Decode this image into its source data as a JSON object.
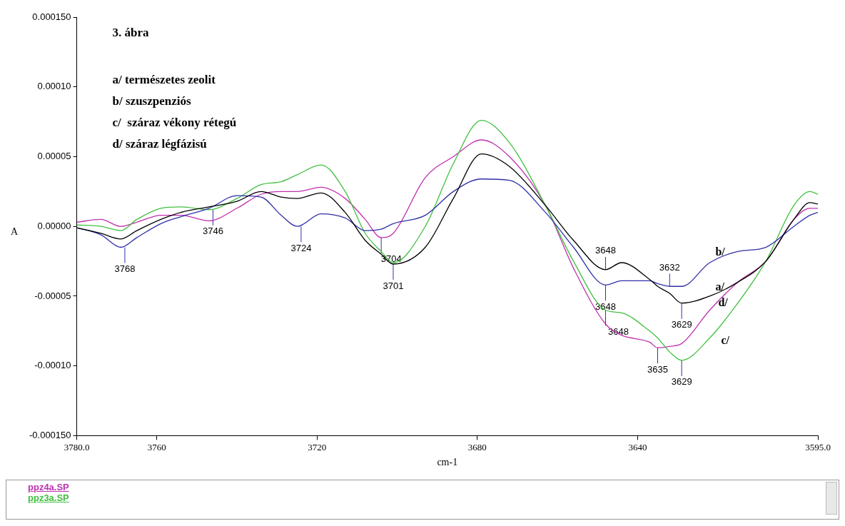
{
  "chart_data": {
    "type": "line",
    "title": "3. ábra",
    "xlabel": "cm-1",
    "ylabel": "A",
    "xlim": [
      3780,
      3595
    ],
    "xticks": [
      {
        "value": 3780,
        "label": "3780.0"
      },
      3760,
      3720,
      3680,
      3640,
      {
        "value": 3595,
        "label": "3595.0"
      }
    ],
    "ylim": [
      -0.00015,
      0.00015
    ],
    "yticks": [
      {
        "value": -0.00015,
        "label": "-0.000150"
      },
      {
        "value": -0.0001,
        "label": "-0.00010"
      },
      {
        "value": -5e-05,
        "label": "-0.00005"
      },
      {
        "value": 0,
        "label": "0.00000"
      },
      {
        "value": 5e-05,
        "label": "0.00005"
      },
      {
        "value": 0.0001,
        "label": "0.00010"
      },
      {
        "value": 0.00015,
        "label": "0.000150"
      }
    ],
    "x": [
      3780,
      3774,
      3769,
      3765,
      3759,
      3754,
      3747,
      3740,
      3734,
      3729,
      3725,
      3719,
      3713,
      3708,
      3704,
      3701,
      3693,
      3686,
      3679,
      3672,
      3663,
      3656,
      3648,
      3644,
      3637,
      3635,
      3632,
      3629,
      3622,
      3615,
      3608,
      3601,
      3597,
      3595
    ],
    "series": [
      {
        "name": "a/",
        "color": "#000000",
        "values": [
          -1e-06,
          -5e-06,
          -9e-06,
          -3e-06,
          5e-06,
          1e-05,
          1.4e-05,
          1.8e-05,
          2.5e-05,
          2.1e-05,
          2e-05,
          2.4e-05,
          1e-05,
          -1e-05,
          -2e-05,
          -2.7e-05,
          -1.5e-05,
          2e-05,
          5.2e-05,
          4.3e-05,
          1.5e-05,
          -1e-05,
          -3.1e-05,
          -2.6e-05,
          -3.8e-05,
          -4.3e-05,
          -4.8e-05,
          -5.5e-05,
          -5e-05,
          -4e-05,
          -2.5e-05,
          5e-06,
          1.7e-05,
          1.6e-05
        ]
      },
      {
        "name": "b/",
        "color": "#3030a8",
        "values": [
          -1e-06,
          -6e-06,
          -1.5e-05,
          -8e-06,
          2e-06,
          7e-06,
          1.3e-05,
          2.2e-05,
          2.1e-05,
          8e-06,
          0,
          9e-06,
          6e-06,
          -3e-06,
          -2e-06,
          2e-06,
          8e-06,
          2.5e-05,
          3.4e-05,
          3.3e-05,
          1e-05,
          -1.5e-05,
          -4.2e-05,
          -3.9e-05,
          -3.9e-05,
          -4.1e-05,
          -4.3e-05,
          -4.3e-05,
          -2.6e-05,
          -1.8e-05,
          -1.5e-05,
          0,
          8e-06,
          1e-05
        ]
      },
      {
        "name": "c/",
        "color": "#40c040",
        "values": [
          1e-06,
          0,
          -3e-06,
          5e-06,
          1.3e-05,
          1.4e-05,
          1.2e-05,
          2e-05,
          3e-05,
          3.2e-05,
          3.7e-05,
          4.4e-05,
          2.5e-05,
          -5e-06,
          -1.8e-05,
          -2.6e-05,
          0,
          4.5e-05,
          7.6e-05,
          6e-05,
          1.5e-05,
          -2.5e-05,
          -6e-05,
          -6.2e-05,
          -7.5e-05,
          -8e-05,
          -9e-05,
          -9.6e-05,
          -8e-05,
          -5.5e-05,
          -2.5e-05,
          1.5e-05,
          2.5e-05,
          2.3e-05
        ]
      },
      {
        "name": "d/",
        "color": "#c030b0",
        "values": [
          3e-06,
          5e-06,
          0,
          3e-06,
          8e-06,
          8e-06,
          4e-06,
          1.3e-05,
          2.3e-05,
          2.5e-05,
          2.5e-05,
          2.8e-05,
          2e-05,
          5e-06,
          -8e-06,
          -5e-06,
          3.5e-05,
          5e-05,
          6.2e-05,
          5e-05,
          1.5e-05,
          -3e-05,
          -7e-05,
          -7.8e-05,
          -8.3e-05,
          -8.7e-05,
          -8.6e-05,
          -8.4e-05,
          -6e-05,
          -4e-05,
          -2.5e-05,
          5e-06,
          1.3e-05,
          1.3e-05
        ]
      }
    ],
    "legend": false,
    "grid": false,
    "annotations": [
      "a/ természetes zeolit",
      "b/ szuszpenziós",
      "c/  száraz vékony rétegú",
      "d/ száraz légfázisú",
      "ppz4a.SP",
      "ppz3a.SP",
      {
        "text": "3768",
        "x": 3768,
        "y": -1.5e-05
      },
      {
        "text": "3746",
        "x": 3746,
        "y": 1.2e-05
      },
      {
        "text": "3724",
        "x": 3724,
        "y": 0
      },
      {
        "text": "3704",
        "x": 3704,
        "y": -8e-06
      },
      {
        "text": "3701",
        "x": 3701,
        "y": -2.7e-05
      },
      {
        "text": "3648",
        "x": 3648,
        "y": -3.1e-05
      },
      {
        "text": "3648",
        "x": 3648,
        "y": -4.2e-05
      },
      {
        "text": "3648",
        "x": 3648,
        "y": -6e-05
      },
      {
        "text": "3632",
        "x": 3632,
        "y": -4.3e-05
      },
      {
        "text": "3629",
        "x": 3629,
        "y": -5.5e-05
      },
      {
        "text": "3635",
        "x": 3635,
        "y": -8.7e-05
      },
      {
        "text": "3629",
        "x": 3629,
        "y": -9.6e-05
      }
    ]
  }
}
